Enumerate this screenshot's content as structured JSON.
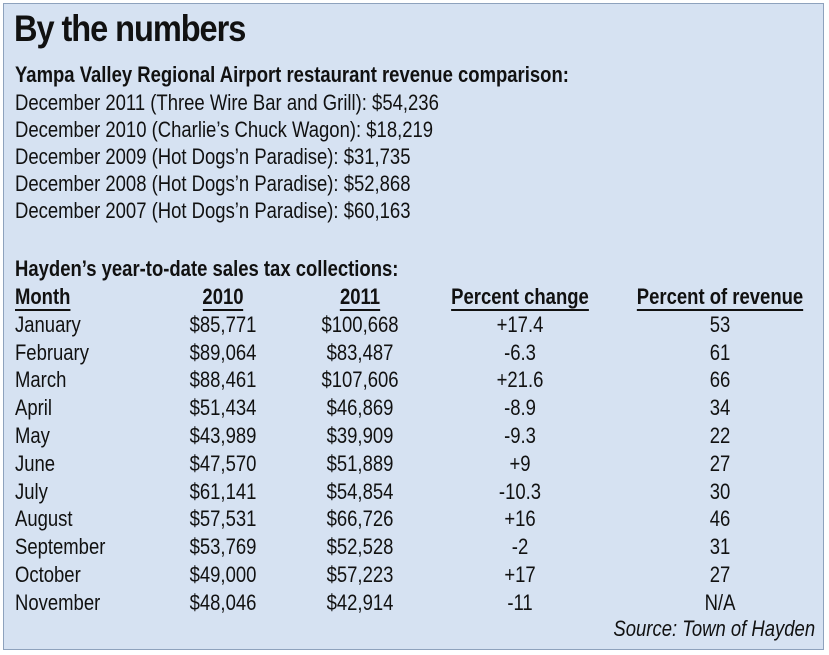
{
  "title": "By the numbers",
  "revenue": {
    "heading": "Yampa Valley Regional Airport restaurant revenue comparison:",
    "lines": [
      "December 2011 (Three Wire Bar and Grill): $54,236",
      "December 2010 (Charlie’s Chuck Wagon): $18,219",
      "December 2009 (Hot Dogs’n Paradise): $31,735",
      "December 2008 (Hot Dogs’n Paradise): $52,868",
      "December 2007 (Hot Dogs’n Paradise): $60,163"
    ]
  },
  "sales_tax": {
    "heading": "Hayden’s year-to-date sales tax collections:",
    "columns": [
      "Month",
      "2010",
      "2011",
      "Percent change",
      "Percent of revenue"
    ],
    "rows": [
      [
        "January",
        "$85,771",
        "$100,668",
        "+17.4",
        "53"
      ],
      [
        "February",
        "$89,064",
        "$83,487",
        "-6.3",
        "61"
      ],
      [
        "March",
        "$88,461",
        "$107,606",
        "+21.6",
        "66"
      ],
      [
        "April",
        "$51,434",
        "$46,869",
        "-8.9",
        "34"
      ],
      [
        "May",
        "$43,989",
        "$39,909",
        "-9.3",
        "22"
      ],
      [
        "June",
        "$47,570",
        "$51,889",
        "+9",
        "27"
      ],
      [
        "July",
        "$61,141",
        "$54,854",
        "-10.3",
        "30"
      ],
      [
        "August",
        "$57,531",
        "$66,726",
        "+16",
        "46"
      ],
      [
        "September",
        "$53,769",
        "$52,528",
        "-2",
        "31"
      ],
      [
        "October",
        "$49,000",
        "$57,223",
        "+17",
        "27"
      ],
      [
        "November",
        "$48,046",
        "$42,914",
        "-11",
        "N/A"
      ]
    ]
  },
  "source": "Source: Town of Hayden",
  "colors": {
    "panel_background": "#d6e2f2",
    "text": "#111111"
  }
}
